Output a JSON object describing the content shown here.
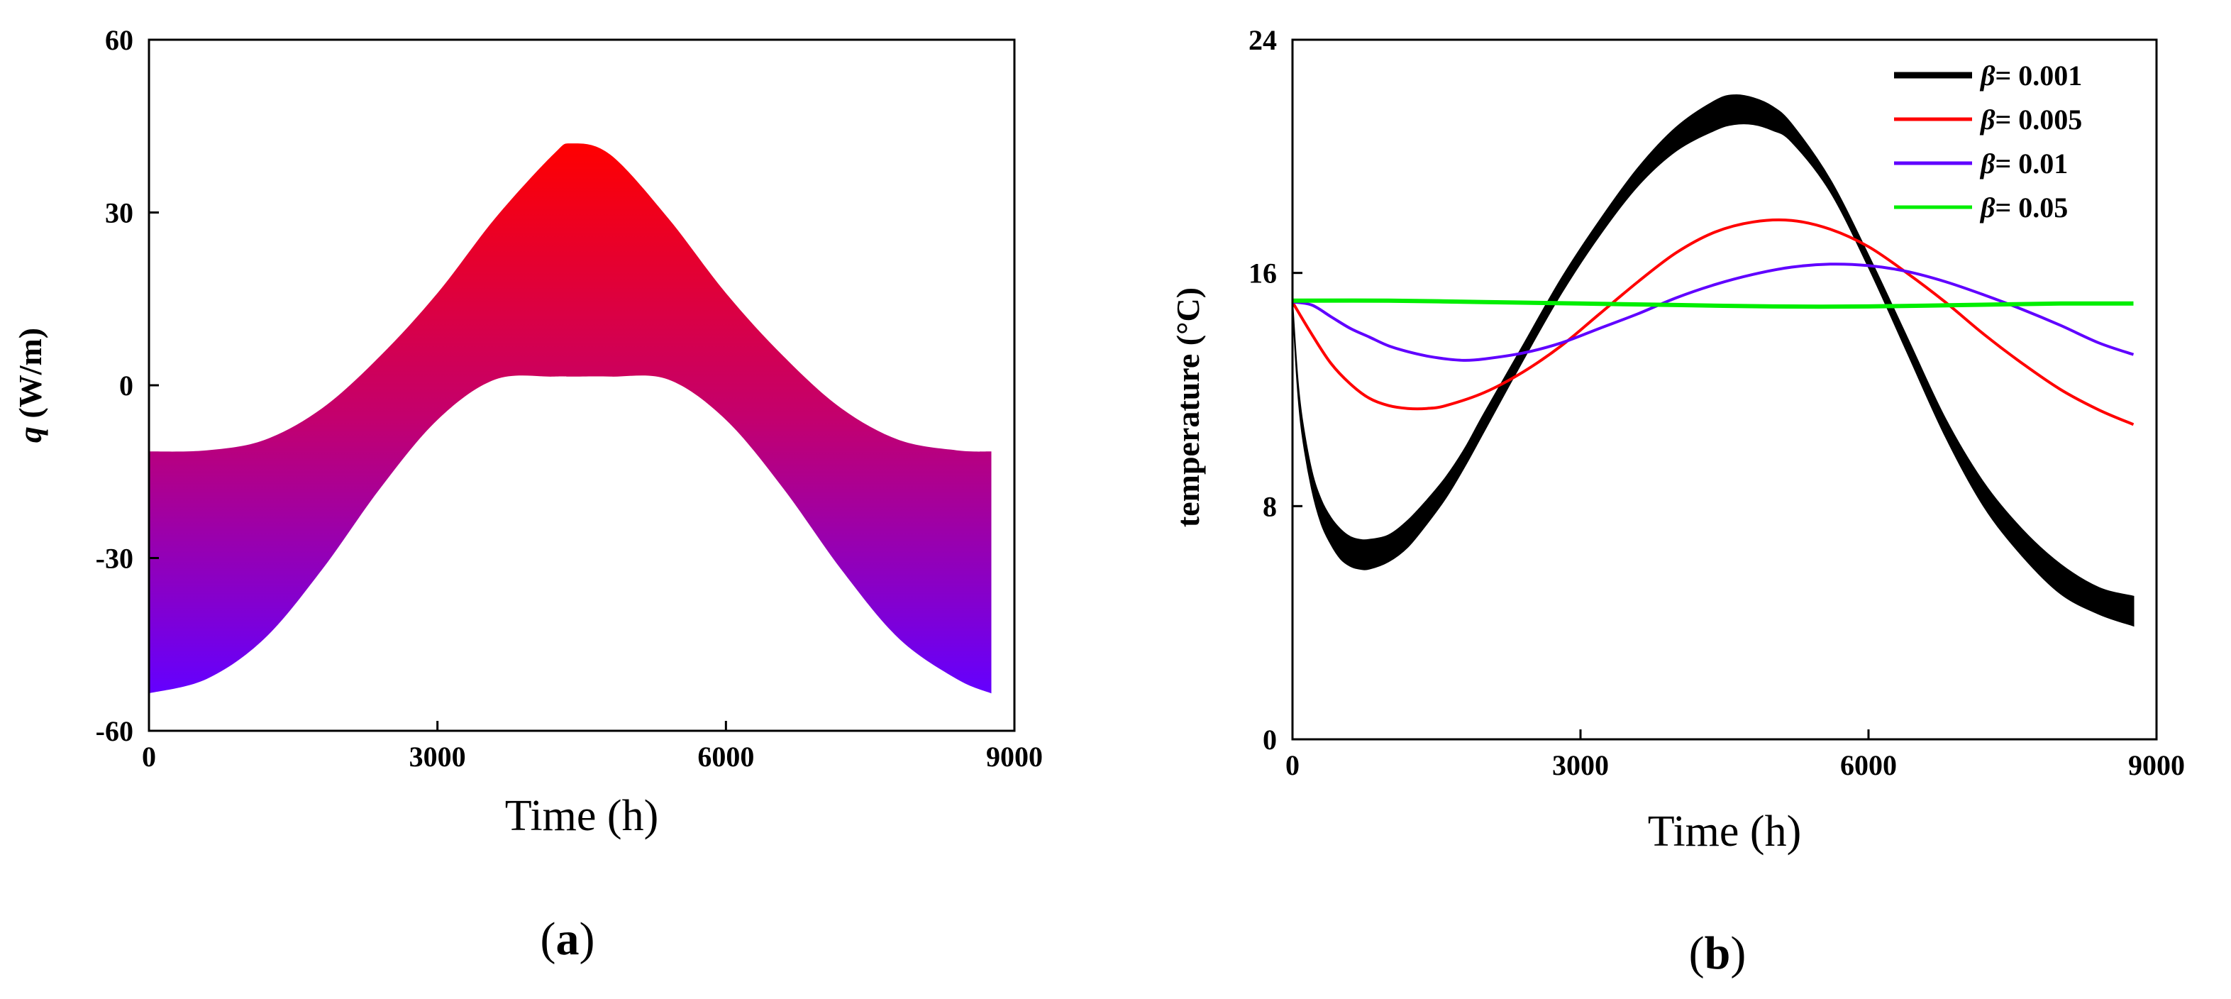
{
  "chart_data": [
    {
      "panel_label": "(a)",
      "panel_letter": "a",
      "type": "area",
      "title": "",
      "xlabel": "Time (h)",
      "ylabel_italic": "q",
      "ylabel_rest": " (W/m)",
      "xlim": [
        0,
        9000
      ],
      "ylim": [
        -60,
        60
      ],
      "xticks": [
        0,
        3000,
        6000,
        9000
      ],
      "yticks": [
        60,
        30,
        0,
        -30,
        -60
      ],
      "series": [
        {
          "name": "q band",
          "x": [
            0,
            600,
            1200,
            1800,
            2400,
            3000,
            3600,
            4200,
            4400,
            4800,
            5400,
            6000,
            6600,
            7200,
            7800,
            8400,
            8760
          ],
          "upper": [
            -11.5,
            -11.3,
            -9.5,
            -4,
            5,
            16,
            29,
            40,
            42,
            40,
            29,
            16,
            5,
            -4,
            -9.5,
            -11.3,
            -11.5
          ],
          "lower": [
            -53.5,
            -51,
            -44,
            -32,
            -18,
            -6,
            1,
            1.5,
            1.5,
            1.5,
            1,
            -6,
            -18,
            -32,
            -44,
            -51,
            -53.5
          ]
        }
      ],
      "colors": {
        "top": "#ff0000",
        "mid": "#c3006e",
        "bottom": "#6400ff",
        "line": "#000000"
      }
    },
    {
      "panel_label": "(b)",
      "panel_letter": "b",
      "type": "line",
      "title": "",
      "xlabel": "Time (h)",
      "ylabel": "temperature (°C)",
      "xlim": [
        0,
        9000
      ],
      "ylim": [
        0,
        24
      ],
      "xticks": [
        0,
        3000,
        6000,
        9000
      ],
      "yticks": [
        0,
        8,
        16,
        24
      ],
      "legend_position": "top-right",
      "series": [
        {
          "name": "β= 0.001",
          "legend_symbol": "β",
          "legend_value": "= 0.001",
          "color": "#000000",
          "band": true,
          "x": [
            0,
            50,
            100,
            200,
            300,
            400,
            500,
            600,
            700,
            800,
            1000,
            1200,
            1400,
            1600,
            1800,
            2000,
            2400,
            2800,
            3200,
            3600,
            4000,
            4400,
            4600,
            4800,
            5000,
            5200,
            5600,
            6000,
            6400,
            6800,
            7200,
            7600,
            8000,
            8400,
            8760
          ],
          "upper": [
            15,
            12.5,
            11,
            9.2,
            8.2,
            7.6,
            7.2,
            6.95,
            6.85,
            6.85,
            7.0,
            7.5,
            8.2,
            9.0,
            10.0,
            11.2,
            13.5,
            15.8,
            17.8,
            19.6,
            21.0,
            21.9,
            22.1,
            22.0,
            21.7,
            21.1,
            19.2,
            16.6,
            13.8,
            11.0,
            8.8,
            7.2,
            6.0,
            5.2,
            4.9
          ],
          "lower": [
            15,
            12.2,
            10.5,
            8.6,
            7.4,
            6.7,
            6.2,
            5.95,
            5.85,
            5.85,
            6.1,
            6.6,
            7.4,
            8.3,
            9.4,
            10.6,
            13.0,
            15.3,
            17.3,
            19.0,
            20.2,
            20.9,
            21.1,
            21.1,
            20.9,
            20.5,
            18.8,
            16.2,
            13.3,
            10.4,
            8.0,
            6.3,
            5.0,
            4.3,
            3.9
          ]
        },
        {
          "name": "β= 0.005",
          "legend_symbol": "β",
          "legend_value": "= 0.005",
          "color": "#ff0000",
          "x": [
            0,
            200,
            400,
            600,
            800,
            1000,
            1200,
            1400,
            1600,
            2000,
            2400,
            2800,
            3200,
            3600,
            4000,
            4400,
            4800,
            5200,
            5600,
            6000,
            6400,
            6800,
            7200,
            7600,
            8000,
            8400,
            8760
          ],
          "y": [
            15,
            13.9,
            12.9,
            12.2,
            11.7,
            11.45,
            11.35,
            11.35,
            11.45,
            11.9,
            12.6,
            13.5,
            14.6,
            15.7,
            16.7,
            17.4,
            17.75,
            17.8,
            17.5,
            16.9,
            16.0,
            15.0,
            13.9,
            12.9,
            12.0,
            11.3,
            10.8
          ]
        },
        {
          "name": "β= 0.01",
          "legend_symbol": "β",
          "legend_value": "= 0.01",
          "color": "#6000ff",
          "x": [
            0,
            200,
            400,
            600,
            800,
            1000,
            1200,
            1400,
            1600,
            1800,
            2000,
            2400,
            2800,
            3200,
            3600,
            4000,
            4400,
            4800,
            5200,
            5600,
            6000,
            6400,
            6800,
            7200,
            7600,
            8000,
            8400,
            8760
          ],
          "y": [
            15,
            14.9,
            14.5,
            14.1,
            13.8,
            13.5,
            13.3,
            13.15,
            13.05,
            13.0,
            13.05,
            13.25,
            13.6,
            14.1,
            14.6,
            15.15,
            15.6,
            15.95,
            16.2,
            16.3,
            16.25,
            16.05,
            15.7,
            15.25,
            14.75,
            14.2,
            13.6,
            13.2
          ]
        },
        {
          "name": "β= 0.05",
          "legend_symbol": "β",
          "legend_value": "= 0.05",
          "color": "#00ee00",
          "x": [
            0,
            1000,
            2000,
            3000,
            4000,
            5000,
            6000,
            7000,
            8000,
            8760
          ],
          "y": [
            15.05,
            15.05,
            15.0,
            14.95,
            14.9,
            14.85,
            14.85,
            14.9,
            14.95,
            14.95
          ]
        }
      ]
    }
  ]
}
